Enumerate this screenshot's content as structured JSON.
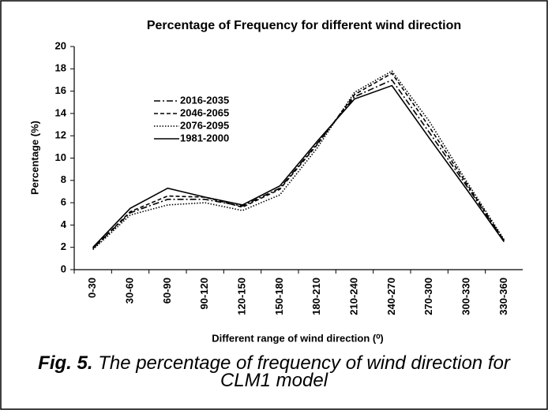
{
  "chart_data": {
    "type": "line",
    "title": "Percentage of Frequency for different wind direction",
    "x_label": "Different range of wind direction (⁰)",
    "y_label": "Percentage (%)",
    "categories": [
      "0-30",
      "30-60",
      "60-90",
      "90-120",
      "120-150",
      "150-180",
      "180-210",
      "210-240",
      "240-270",
      "270-300",
      "300-330",
      "330-360"
    ],
    "series": [
      {
        "name": "2016-2035",
        "color": "#000000",
        "line_style": "dash-dot",
        "values": [
          1.9,
          5.1,
          6.3,
          6.3,
          5.7,
          7.3,
          11.3,
          15.5,
          17.0,
          12.3,
          7.5,
          2.6
        ]
      },
      {
        "name": "2046-2065",
        "color": "#000000",
        "line_style": "dashed",
        "values": [
          1.9,
          5.2,
          6.6,
          6.5,
          5.6,
          7.2,
          11.2,
          15.7,
          17.6,
          12.8,
          7.7,
          2.6
        ]
      },
      {
        "name": "2076-2095",
        "color": "#000000",
        "line_style": "dotted",
        "values": [
          1.8,
          4.9,
          5.8,
          6.0,
          5.3,
          6.7,
          10.9,
          15.9,
          17.8,
          13.3,
          7.9,
          2.7
        ]
      },
      {
        "name": "1981-2000",
        "color": "#000000",
        "line_style": "solid",
        "values": [
          2.0,
          5.5,
          7.3,
          6.5,
          5.8,
          7.5,
          11.5,
          15.3,
          16.5,
          11.8,
          7.2,
          2.5
        ]
      }
    ],
    "ylim": [
      0,
      20
    ],
    "yticks": [
      0,
      2,
      4,
      6,
      8,
      10,
      12,
      14,
      16,
      18,
      20
    ],
    "grid": false,
    "legend": "upper-left"
  },
  "caption": {
    "label": "Fig. 5.",
    "text": "The percentage of frequency of wind direction for CLM1 model"
  }
}
